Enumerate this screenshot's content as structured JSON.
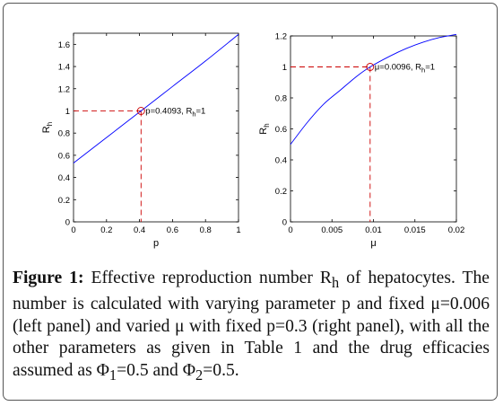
{
  "colors": {
    "curve": "#0000ff",
    "guide": "#cc0000",
    "axis": "#000000",
    "border": "#555555"
  },
  "chart_data": [
    {
      "type": "line",
      "panel": "left",
      "xlabel": "p",
      "ylabel": "R",
      "ylabel_sub": "h",
      "xlim": [
        0,
        1
      ],
      "ylim": [
        0,
        1.7
      ],
      "xticks": [
        0,
        0.2,
        0.4,
        0.6,
        0.8,
        1
      ],
      "xtick_labels": [
        "0",
        "0.2",
        "0.4",
        "0.6",
        "0.8",
        "1"
      ],
      "yticks": [
        0,
        0.2,
        0.4,
        0.6,
        0.8,
        1,
        1.2,
        1.4,
        1.6
      ],
      "ytick_labels": [
        "0",
        "0.2",
        "0.4",
        "0.6",
        "0.8",
        "1",
        "1.2",
        "1.4",
        "1.6"
      ],
      "grid": false,
      "series": [
        {
          "x": [
            0,
            0.2,
            0.4,
            0.4093,
            0.6,
            0.8,
            1
          ],
          "y": [
            0.53,
            0.76,
            0.99,
            1.0,
            1.22,
            1.45,
            1.69
          ]
        }
      ],
      "marker": {
        "x": 0.4093,
        "y": 1
      },
      "annotation": {
        "text": "p=0.4093, R",
        "sub": "h",
        "tail": "=1"
      }
    },
    {
      "type": "line",
      "panel": "right",
      "xlabel": "μ",
      "ylabel": "R",
      "ylabel_sub": "h",
      "xlim": [
        0,
        0.02
      ],
      "ylim": [
        0,
        1.2
      ],
      "xticks": [
        0,
        0.005,
        0.01,
        0.015,
        0.02
      ],
      "xtick_labels": [
        "0",
        "0.005",
        "0.01",
        "0.015",
        "0.02"
      ],
      "yticks": [
        0,
        0.2,
        0.4,
        0.6,
        0.8,
        1,
        1.2
      ],
      "ytick_labels": [
        "0",
        "0.2",
        "0.4",
        "0.6",
        "0.8",
        "1",
        "1.2"
      ],
      "grid": false,
      "series": [
        {
          "x": [
            0,
            0.002,
            0.004,
            0.006,
            0.008,
            0.0096,
            0.012,
            0.014,
            0.016,
            0.018,
            0.02
          ],
          "y": [
            0.5,
            0.64,
            0.76,
            0.85,
            0.94,
            1.0,
            1.07,
            1.12,
            1.16,
            1.19,
            1.21
          ]
        }
      ],
      "marker": {
        "x": 0.0096,
        "y": 1
      },
      "annotation": {
        "text": "μ=0.0096, R",
        "sub": "h",
        "tail": "=1"
      }
    }
  ],
  "caption": {
    "label": "Figure 1:",
    "text_a": " Effective reproduction number R",
    "sub_a": "h",
    "text_b": " of hepatocytes. The number is calculated with varying parameter p and fixed μ=0.006 (left panel) and varied μ with fixed p=0.3 (right panel), with all the other parameters as given in Table 1 and the drug efficacies assumed as Φ",
    "sub_b": "1",
    "text_c": "=0.5 and Φ",
    "sub_c": "2",
    "text_d": "=0.5."
  }
}
